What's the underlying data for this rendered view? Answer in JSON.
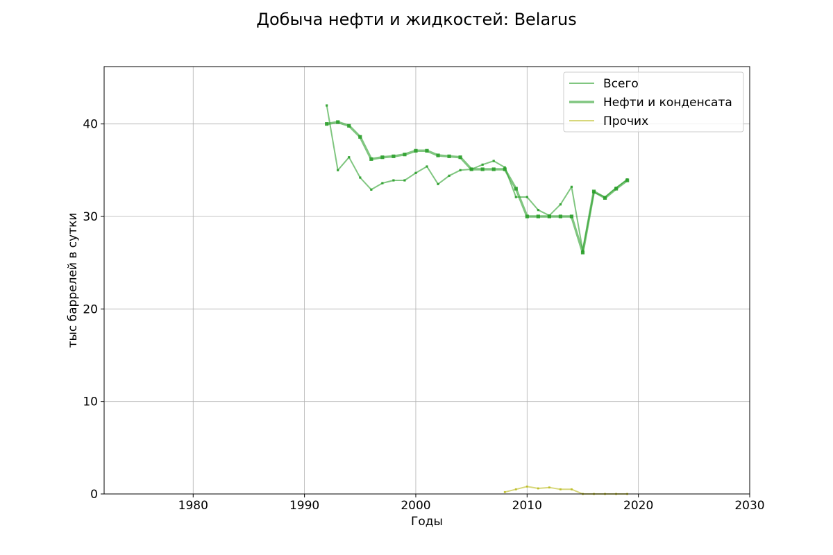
{
  "chart_data": {
    "type": "line",
    "title": "Добыча нефти и жидкостей: Belarus",
    "xlabel": "Годы",
    "ylabel": "тыс баррелей в сутки",
    "xlim": [
      1972,
      2030
    ],
    "ylim": [
      0,
      46.2
    ],
    "xticks": [
      1980,
      1990,
      2000,
      2010,
      2020,
      2030
    ],
    "yticks": [
      0,
      10,
      20,
      30,
      40
    ],
    "grid": true,
    "legend_position": "top-right",
    "series": [
      {
        "name": "Всего",
        "color": "#2ca02c",
        "x": [
          1992,
          1993,
          1994,
          1995,
          1996,
          1997,
          1998,
          1999,
          2000,
          2001,
          2002,
          2003,
          2004,
          2005,
          2006,
          2007,
          2008,
          2009,
          2010,
          2011,
          2012,
          2013,
          2014,
          2015,
          2016,
          2017,
          2018,
          2019
        ],
        "values": [
          42.0,
          35.0,
          36.4,
          34.2,
          32.9,
          33.6,
          33.9,
          33.9,
          34.7,
          35.4,
          33.5,
          34.4,
          35.0,
          35.1,
          35.6,
          36.0,
          35.3,
          32.1,
          32.1,
          30.7,
          30.1,
          31.3,
          33.2,
          26.3,
          32.6,
          32.1,
          33.1,
          34.0
        ]
      },
      {
        "name": "Нефти и конденсата",
        "color": "#2ca02c",
        "x": [
          1992,
          1993,
          1994,
          1995,
          1996,
          1997,
          1998,
          1999,
          2000,
          2001,
          2002,
          2003,
          2004,
          2005,
          2006,
          2007,
          2008,
          2009,
          2010,
          2011,
          2012,
          2013,
          2014,
          2015,
          2016,
          2017,
          2018,
          2019
        ],
        "values": [
          40.0,
          40.2,
          39.8,
          38.6,
          36.2,
          36.4,
          36.5,
          36.7,
          37.1,
          37.1,
          36.6,
          36.5,
          36.4,
          35.1,
          35.1,
          35.1,
          35.1,
          33.0,
          30.0,
          30.0,
          30.0,
          30.0,
          30.0,
          26.1,
          32.7,
          32.0,
          33.0,
          33.9
        ]
      },
      {
        "name": "Прочих",
        "color": "#bcbd22",
        "x": [
          2008,
          2009,
          2010,
          2011,
          2012,
          2013,
          2014,
          2015,
          2016,
          2017,
          2018,
          2019
        ],
        "values": [
          0.2,
          0.5,
          0.8,
          0.6,
          0.7,
          0.5,
          0.5,
          0.0,
          0.0,
          0.0,
          0.0,
          0.0
        ]
      }
    ]
  }
}
